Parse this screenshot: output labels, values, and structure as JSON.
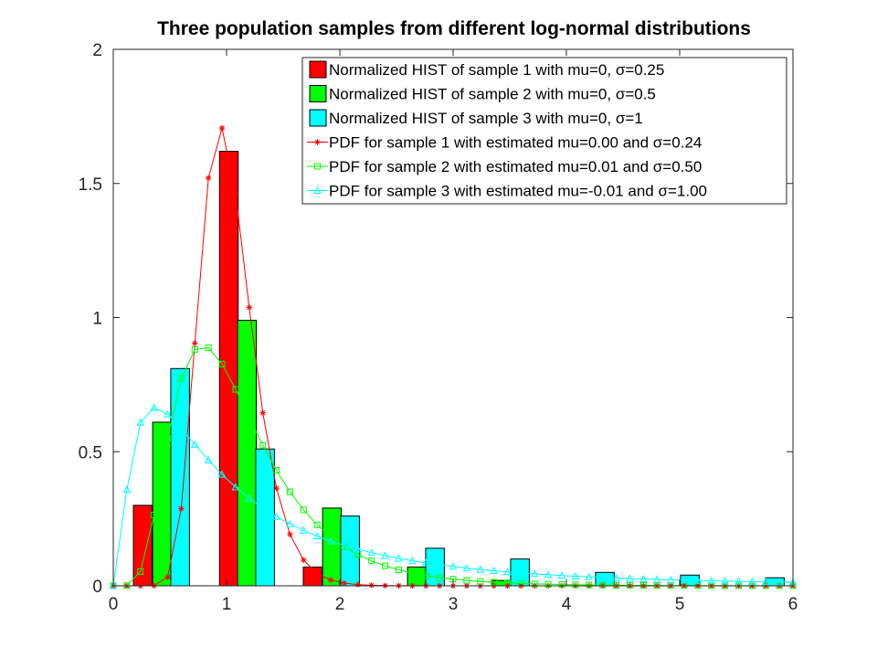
{
  "chart_data": {
    "type": "bar",
    "title": "Three population samples from different log-normal distributions",
    "xlabel": "",
    "ylabel": "",
    "xlim": [
      0,
      6
    ],
    "ylim": [
      0,
      2
    ],
    "xticks": [
      "0",
      "1",
      "2",
      "3",
      "4",
      "5",
      "6"
    ],
    "yticks": [
      "0",
      "0.5",
      "1",
      "1.5",
      "2"
    ],
    "grid": false,
    "legend_position": "top-right",
    "histograms": [
      {
        "name": "Normalized HIST of sample 1 with mu=0, σ=0.25",
        "color": "#ff0000",
        "bars": [
          {
            "x": 0.26,
            "y": 0.3
          },
          {
            "x": 1.02,
            "y": 1.62
          },
          {
            "x": 1.76,
            "y": 0.07
          }
        ]
      },
      {
        "name": "Normalized HIST of sample 2 with mu=0, σ=0.5",
        "color": "#00ff00",
        "bars": [
          {
            "x": 0.43,
            "y": 0.61
          },
          {
            "x": 1.18,
            "y": 0.99
          },
          {
            "x": 1.93,
            "y": 0.29
          },
          {
            "x": 2.68,
            "y": 0.07
          },
          {
            "x": 3.43,
            "y": 0.02
          }
        ]
      },
      {
        "name": "Normalized HIST of sample 3 with mu=0, σ=1",
        "color": "#00ffff",
        "bars": [
          {
            "x": 0.59,
            "y": 0.81
          },
          {
            "x": 1.34,
            "y": 0.51
          },
          {
            "x": 2.09,
            "y": 0.26
          },
          {
            "x": 2.84,
            "y": 0.14
          },
          {
            "x": 3.59,
            "y": 0.1
          },
          {
            "x": 4.34,
            "y": 0.05
          },
          {
            "x": 5.09,
            "y": 0.04
          },
          {
            "x": 5.84,
            "y": 0.03
          }
        ]
      }
    ],
    "pdfs": [
      {
        "name": "PDF for sample 1 with estimated mu=0.00 and σ=0.24",
        "color": "#ff0000",
        "marker": "star",
        "mu": 0.0,
        "sigma": 0.24
      },
      {
        "name": "PDF for sample 2 with estimated mu=0.01 and σ=0.50",
        "color": "#00ff00",
        "marker": "square",
        "mu": 0.01,
        "sigma": 0.5
      },
      {
        "name": "PDF for sample 3 with estimated mu=-0.01 and σ=1.00",
        "color": "#00ffff",
        "marker": "triangle",
        "mu": -0.01,
        "sigma": 1.0
      }
    ]
  }
}
